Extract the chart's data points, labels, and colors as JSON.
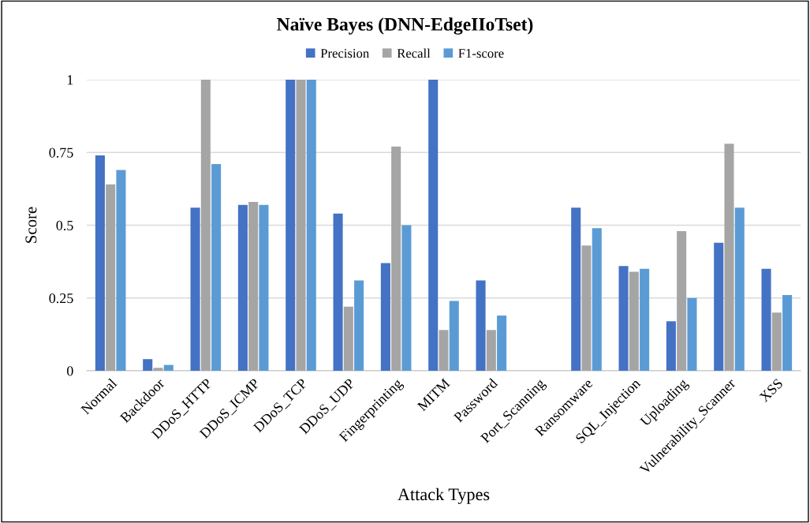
{
  "chart_data": {
    "type": "bar",
    "title": "Naïve Bayes (DNN-EdgeIIoTset)",
    "xlabel": "Attack Types",
    "ylabel": "Score",
    "categories": [
      "Normal",
      "Backdoor",
      "DDoS_HTTP",
      "DDoS_ICMP",
      "DDoS_TCP",
      "DDoS_UDP",
      "Fingerprinting",
      "MITM",
      "Password",
      "Port_Scanning",
      "Ransomware",
      "SQL_Injection",
      "Uploading",
      "Vulnerability_Scanner",
      "XSS"
    ],
    "series": [
      {
        "name": "Precision",
        "color": "#4472c4",
        "values": [
          0.74,
          0.04,
          0.56,
          0.57,
          1,
          0.54,
          0.37,
          1,
          0.31,
          0,
          0.56,
          0.36,
          0.17,
          0.44,
          0.35
        ]
      },
      {
        "name": "Recall",
        "color": "#a5a5a5",
        "values": [
          0.64,
          0.01,
          1,
          0.58,
          1,
          0.22,
          0.77,
          0.14,
          0.14,
          0,
          0.43,
          0.34,
          0.48,
          0.78,
          0.2
        ]
      },
      {
        "name": "F1-score",
        "color": "#5b9bd5",
        "values": [
          0.69,
          0.02,
          0.71,
          0.57,
          1,
          0.31,
          0.5,
          0.24,
          0.19,
          0,
          0.49,
          0.35,
          0.25,
          0.56,
          0.26
        ]
      }
    ],
    "ylim": [
      0,
      1
    ],
    "yticks": [
      0,
      0.25,
      0.5,
      0.75,
      1
    ],
    "grid": "y",
    "legend": "top"
  }
}
